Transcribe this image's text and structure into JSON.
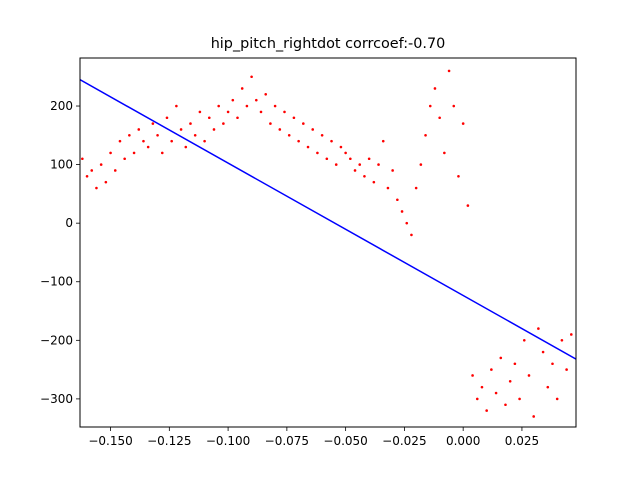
{
  "chart_data": {
    "type": "scatter",
    "title": "hip_pitch_rightdot corrcoef:-0.70",
    "xlabel": "",
    "ylabel": "",
    "xlim": [
      -0.163,
      0.048
    ],
    "ylim": [
      -348,
      282
    ],
    "grid": false,
    "legend": "none",
    "colors": {
      "points": "#ff0000",
      "fit_line": "#0000ff",
      "axes": "#000000",
      "background": "#ffffff"
    },
    "xticks": [
      -0.15,
      -0.125,
      -0.1,
      -0.075,
      -0.05,
      -0.025,
      0.0,
      0.025
    ],
    "xtick_labels": [
      "−0.150",
      "−0.125",
      "−0.100",
      "−0.075",
      "−0.050",
      "−0.025",
      "0.000",
      "0.025"
    ],
    "yticks": [
      200,
      100,
      0,
      -100,
      -200,
      -300
    ],
    "ytick_labels": [
      "200",
      "100",
      "0",
      "−100",
      "−200",
      "−300"
    ],
    "series": [
      {
        "kind": "points",
        "x": [
          -0.162,
          -0.16,
          -0.158,
          -0.156,
          -0.154,
          -0.152,
          -0.15,
          -0.148,
          -0.146,
          -0.144,
          -0.142,
          -0.14,
          -0.138,
          -0.136,
          -0.134,
          -0.132,
          -0.13,
          -0.128,
          -0.126,
          -0.124,
          -0.122,
          -0.12,
          -0.118,
          -0.116,
          -0.114,
          -0.112,
          -0.11,
          -0.108,
          -0.106,
          -0.104,
          -0.102,
          -0.1,
          -0.098,
          -0.096,
          -0.094,
          -0.092,
          -0.09,
          -0.088,
          -0.086,
          -0.084,
          -0.082,
          -0.08,
          -0.078,
          -0.076,
          -0.074,
          -0.072,
          -0.07,
          -0.068,
          -0.066,
          -0.064,
          -0.062,
          -0.06,
          -0.058,
          -0.056,
          -0.054,
          -0.052,
          -0.05,
          -0.048,
          -0.046,
          -0.044,
          -0.042,
          -0.04,
          -0.038,
          -0.036,
          -0.034,
          -0.032,
          -0.03,
          -0.028,
          -0.026,
          -0.024,
          -0.022,
          -0.02,
          -0.018,
          -0.016,
          -0.014,
          -0.012,
          -0.01,
          -0.008,
          -0.006,
          -0.004,
          -0.002,
          0.0,
          0.002,
          0.004,
          0.006,
          0.008,
          0.01,
          0.012,
          0.014,
          0.016,
          0.018,
          0.02,
          0.022,
          0.024,
          0.026,
          0.028,
          0.03,
          0.032,
          0.034,
          0.036,
          0.038,
          0.04,
          0.042,
          0.044,
          0.046
        ],
        "y": [
          110,
          80,
          90,
          60,
          100,
          70,
          120,
          90,
          140,
          110,
          150,
          120,
          160,
          140,
          130,
          170,
          150,
          120,
          180,
          140,
          200,
          160,
          130,
          170,
          150,
          190,
          140,
          180,
          160,
          200,
          170,
          190,
          210,
          180,
          230,
          200,
          250,
          210,
          190,
          220,
          170,
          200,
          160,
          190,
          150,
          180,
          140,
          170,
          130,
          160,
          120,
          150,
          110,
          140,
          100,
          130,
          120,
          110,
          90,
          100,
          80,
          110,
          70,
          100,
          140,
          60,
          90,
          40,
          20,
          0,
          -20,
          60,
          100,
          150,
          200,
          230,
          180,
          120,
          260,
          200,
          80,
          170,
          30,
          -260,
          -300,
          -280,
          -320,
          -250,
          -290,
          -230,
          -310,
          -270,
          -240,
          -300,
          -200,
          -260,
          -330,
          -180,
          -220,
          -280,
          -240,
          -300,
          -200,
          -250,
          -190
        ]
      },
      {
        "kind": "fit_line",
        "x": [
          -0.163,
          0.048
        ],
        "y": [
          245,
          -232
        ]
      }
    ]
  }
}
